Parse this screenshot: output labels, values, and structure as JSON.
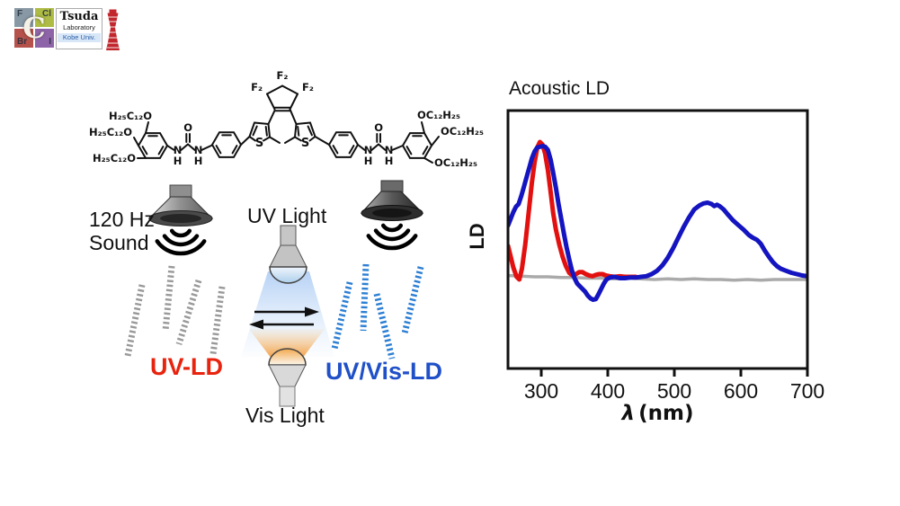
{
  "logo": {
    "tile": {
      "center": "C",
      "top_left": "F",
      "top_right": "Cl",
      "bottom_left": "Br",
      "bottom_right": "I",
      "colors": {
        "top_left": "#8898a4",
        "top_right": "#aebc45",
        "bottom_left": "#b5524b",
        "bottom_right": "#8e64a8"
      }
    },
    "name_line1": "Tsuda",
    "name_line2": "Laboratory",
    "name_line3": "Kobe Univ.",
    "tower_color": "#c1272d"
  },
  "molecule": {
    "labels": {
      "alkoxy_left": [
        "H₂₅C₁₂O",
        "H₂₅C₁₂O",
        "H₂₅C₁₂O"
      ],
      "alkoxy_right": [
        "OC₁₂H₂₅",
        "OC₁₂H₂₅",
        "OC₁₂H₂₅"
      ],
      "f2": [
        "F₂",
        "F₂",
        "F₂"
      ],
      "s": "S",
      "n": "N",
      "h": "H",
      "o": "O"
    }
  },
  "scheme": {
    "sound_line1": "120 Hz",
    "sound_line2": "Sound",
    "uv_light": "UV Light",
    "vis_light": "Vis Light",
    "left_state_label": "UV-LD",
    "right_state_label": "UV/Vis-LD",
    "colors": {
      "uv_ld_text": "#e8230e",
      "uv_vis_ld_text": "#2050c8",
      "gray_rods": "#999999",
      "blue_rods": "#2d7fd3",
      "uv_beam": "#8fb9ef",
      "vis_glow": "#f0922e"
    }
  },
  "chart_data": {
    "type": "line",
    "title": "Acoustic LD",
    "xlabel": "λ (nm)",
    "xlabel_symbol": "λ",
    "xlabel_unit": "(nm)",
    "ylabel": "LD",
    "xlim": [
      250,
      700
    ],
    "x_ticks": [
      300,
      400,
      500,
      600,
      700
    ],
    "ylim": [
      -0.7,
      1.25
    ],
    "y_units": "arbitrary (no y ticks shown, baseline = 0)",
    "grid": false,
    "legend": "none",
    "series": [
      {
        "name": "baseline",
        "color": "#aaaaaa",
        "width": 3.5,
        "points": [
          [
            250,
            0.01
          ],
          [
            270,
            0.005
          ],
          [
            290,
            0
          ],
          [
            310,
            0
          ],
          [
            330,
            -0.005
          ],
          [
            350,
            -0.005
          ],
          [
            370,
            -0.01
          ],
          [
            390,
            -0.01
          ],
          [
            410,
            -0.015
          ],
          [
            430,
            -0.01
          ],
          [
            450,
            -0.015
          ],
          [
            470,
            -0.02
          ],
          [
            490,
            -0.015
          ],
          [
            510,
            -0.02
          ],
          [
            530,
            -0.015
          ],
          [
            550,
            -0.02
          ],
          [
            570,
            -0.02
          ],
          [
            590,
            -0.025
          ],
          [
            610,
            -0.02
          ],
          [
            630,
            -0.025
          ],
          [
            650,
            -0.02
          ],
          [
            670,
            -0.02
          ],
          [
            690,
            -0.02
          ],
          [
            700,
            -0.02
          ]
        ]
      },
      {
        "name": "UV-LD",
        "color": "#e31010",
        "width": 5,
        "points": [
          [
            250,
            0.23
          ],
          [
            254,
            0.15
          ],
          [
            258,
            0.07
          ],
          [
            263,
            0
          ],
          [
            267,
            -0.02
          ],
          [
            271,
            0.06
          ],
          [
            276,
            0.24
          ],
          [
            281,
            0.47
          ],
          [
            286,
            0.7
          ],
          [
            290,
            0.85
          ],
          [
            294,
            0.96
          ],
          [
            298,
            1.0
          ],
          [
            302,
            0.98
          ],
          [
            306,
            0.91
          ],
          [
            310,
            0.79
          ],
          [
            314,
            0.63
          ],
          [
            318,
            0.47
          ],
          [
            322,
            0.35
          ],
          [
            327,
            0.24
          ],
          [
            332,
            0.15
          ],
          [
            337,
            0.08
          ],
          [
            342,
            0.03
          ],
          [
            347,
            0.01
          ],
          [
            352,
            0.02
          ],
          [
            357,
            0.035
          ],
          [
            362,
            0.035
          ],
          [
            367,
            0.02
          ],
          [
            372,
            0.01
          ],
          [
            377,
            0.005
          ],
          [
            382,
            0.015
          ],
          [
            387,
            0.02
          ],
          [
            392,
            0.02
          ],
          [
            397,
            0.01
          ],
          [
            403,
            0.005
          ],
          [
            410,
            0
          ],
          [
            418,
            0.005
          ],
          [
            426,
            0
          ],
          [
            434,
            0
          ],
          [
            442,
            0
          ]
        ]
      },
      {
        "name": "UV/Vis-LD",
        "color": "#1414c0",
        "width": 5,
        "points": [
          [
            250,
            0.38
          ],
          [
            254,
            0.43
          ],
          [
            258,
            0.48
          ],
          [
            262,
            0.52
          ],
          [
            266,
            0.54
          ],
          [
            270,
            0.6
          ],
          [
            274,
            0.67
          ],
          [
            278,
            0.74
          ],
          [
            282,
            0.81
          ],
          [
            286,
            0.88
          ],
          [
            290,
            0.93
          ],
          [
            294,
            0.96
          ],
          [
            298,
            0.965
          ],
          [
            302,
            0.97
          ],
          [
            306,
            0.965
          ],
          [
            310,
            0.94
          ],
          [
            314,
            0.87
          ],
          [
            318,
            0.77
          ],
          [
            322,
            0.66
          ],
          [
            326,
            0.54
          ],
          [
            330,
            0.43
          ],
          [
            334,
            0.32
          ],
          [
            338,
            0.22
          ],
          [
            342,
            0.13
          ],
          [
            346,
            0.05
          ],
          [
            350,
            -0.01
          ],
          [
            354,
            -0.05
          ],
          [
            358,
            -0.07
          ],
          [
            362,
            -0.09
          ],
          [
            366,
            -0.11
          ],
          [
            370,
            -0.14
          ],
          [
            374,
            -0.16
          ],
          [
            378,
            -0.17
          ],
          [
            382,
            -0.165
          ],
          [
            386,
            -0.13
          ],
          [
            390,
            -0.09
          ],
          [
            394,
            -0.05
          ],
          [
            398,
            -0.02
          ],
          [
            403,
            -0.005
          ],
          [
            410,
            0
          ],
          [
            418,
            -0.01
          ],
          [
            426,
            -0.01
          ],
          [
            434,
            -0.005
          ],
          [
            442,
            -0.005
          ],
          [
            450,
            0
          ],
          [
            458,
            0.005
          ],
          [
            466,
            0.02
          ],
          [
            474,
            0.045
          ],
          [
            482,
            0.085
          ],
          [
            490,
            0.14
          ],
          [
            498,
            0.21
          ],
          [
            506,
            0.29
          ],
          [
            514,
            0.37
          ],
          [
            522,
            0.44
          ],
          [
            530,
            0.5
          ],
          [
            538,
            0.53
          ],
          [
            544,
            0.545
          ],
          [
            550,
            0.55
          ],
          [
            556,
            0.54
          ],
          [
            560,
            0.525
          ],
          [
            564,
            0.535
          ],
          [
            568,
            0.525
          ],
          [
            574,
            0.5
          ],
          [
            580,
            0.465
          ],
          [
            588,
            0.42
          ],
          [
            596,
            0.385
          ],
          [
            604,
            0.35
          ],
          [
            612,
            0.31
          ],
          [
            618,
            0.29
          ],
          [
            624,
            0.275
          ],
          [
            630,
            0.245
          ],
          [
            636,
            0.195
          ],
          [
            642,
            0.15
          ],
          [
            648,
            0.11
          ],
          [
            654,
            0.08
          ],
          [
            660,
            0.06
          ],
          [
            668,
            0.045
          ],
          [
            676,
            0.03
          ],
          [
            684,
            0.02
          ],
          [
            692,
            0.01
          ],
          [
            700,
            0.005
          ]
        ]
      }
    ]
  }
}
